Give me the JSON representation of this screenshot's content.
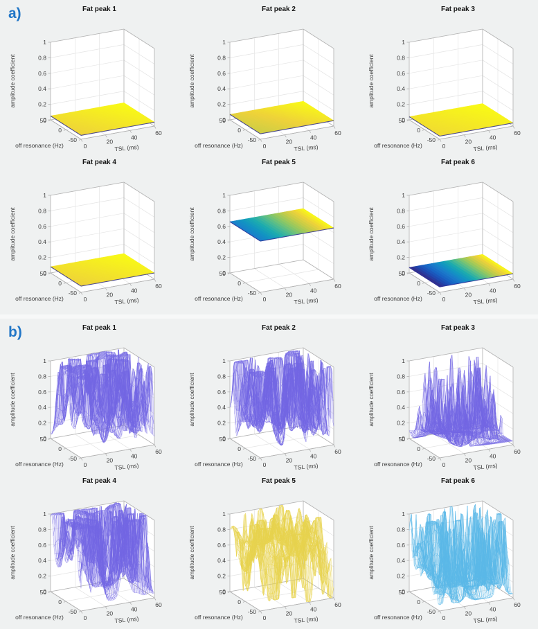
{
  "figure": {
    "background": "#eff1f1",
    "plot_background": "#ffffff",
    "panel_label_color": "#2176c7",
    "axis_line_color": "#b2b2b2",
    "grid_line_color": "#e4e4e4",
    "tick_text_color": "#3d3d3d"
  },
  "chart_data": {
    "type": "surface-grid",
    "description": "Two panels (a, b) each with six 3D surface plots of fat peak amplitude coefficients versus TSL and off resonance frequency",
    "axes": {
      "x": {
        "label": "TSL (ms)",
        "ticks": [
          0,
          20,
          40,
          60
        ],
        "range": [
          0,
          60
        ]
      },
      "y": {
        "label": "off resonance (Hz)",
        "ticks": [
          50,
          0,
          -50
        ],
        "range": [
          -50,
          50
        ]
      },
      "z": {
        "label": "amplitude coefficient",
        "ticks": [
          0,
          0.2,
          0.4,
          0.6,
          0.8,
          1
        ],
        "range": [
          0,
          1
        ]
      }
    },
    "panels": [
      {
        "id": "a",
        "label": "a)",
        "style": "smooth flat surfaces, parula colormap",
        "plots": [
          {
            "title": "Fat peak 1",
            "surface": "flat",
            "level": 0.05,
            "cmap_span": [
              0.9,
              1.0
            ],
            "cmap_dir": "diag"
          },
          {
            "title": "Fat peak 2",
            "surface": "flat",
            "level": 0.07,
            "cmap_span": [
              0.82,
              1.0
            ],
            "cmap_dir": "diag"
          },
          {
            "title": "Fat peak 3",
            "surface": "flat",
            "level": 0.04,
            "cmap_span": [
              0.92,
              1.0
            ],
            "cmap_dir": "diag"
          },
          {
            "title": "Fat peak 4",
            "surface": "flat",
            "level": 0.08,
            "cmap_span": [
              0.9,
              1.0
            ],
            "cmap_dir": "diag"
          },
          {
            "title": "Fat peak 5",
            "surface": "flat",
            "level": 0.66,
            "cmap_span": [
              0.3,
              1.0
            ],
            "cmap_dir": "x"
          },
          {
            "title": "Fat peak 6",
            "surface": "flat",
            "level": 0.07,
            "cmap_span": [
              0.0,
              1.0
            ],
            "cmap_dir": "x"
          }
        ]
      },
      {
        "id": "b",
        "label": "b)",
        "style": "noisy spiky mesh surfaces",
        "plots": [
          {
            "title": "Fat peak 1",
            "surface": "spiky",
            "color": "#7468e4",
            "fill_alpha": 0.13,
            "gen": {
              "seed": 7,
              "peaks": 170,
              "w_min": 0.55,
              "w_max": 1.9,
              "h_min": 0.3,
              "h_max": 1.2,
              "base": 0.05,
              "wave": 0.5,
              "wave_phase": 0.5,
              "bumps": [
                {
                  "x": 0.02,
                  "y": 0.1,
                  "h": 0.9,
                  "w": 0.1
                },
                {
                  "x": 0.04,
                  "y": 0.5,
                  "h": 0.45,
                  "w": 0.13
                }
              ]
            }
          },
          {
            "title": "Fat peak 2",
            "surface": "spiky",
            "color": "#7468e4",
            "fill_alpha": 0.13,
            "gen": {
              "seed": 19,
              "peaks": 150,
              "w_min": 0.55,
              "w_max": 1.9,
              "h_min": 0.3,
              "h_max": 1.15,
              "base": 0.05,
              "wave": 0.45,
              "wave_phase": 2.1,
              "bumps": [
                {
                  "x": 0.03,
                  "y": 0.22,
                  "h": 0.9,
                  "w": 0.12
                }
              ]
            }
          },
          {
            "title": "Fat peak 3",
            "surface": "spiky",
            "color": "#7468e4",
            "fill_alpha": 0.13,
            "gen": {
              "seed": 31,
              "peaks": 62,
              "w_min": 0.5,
              "w_max": 1.4,
              "h_min": 0.25,
              "h_max": 1.05,
              "base": 0.04,
              "wave": 0.2,
              "wave_phase": 1.2,
              "bumps": [
                {
                  "x": 0.05,
                  "y": 0.2,
                  "h": 0.4,
                  "w": 0.1
                }
              ]
            }
          },
          {
            "title": "Fat peak 4",
            "surface": "spiky",
            "color": "#7468e4",
            "fill_alpha": 0.13,
            "gen": {
              "seed": 43,
              "peaks": 145,
              "w_min": 0.55,
              "w_max": 2.0,
              "h_min": 0.3,
              "h_max": 1.2,
              "base": 0.06,
              "wave": 0.5,
              "wave_phase": 3.6,
              "bumps": [
                {
                  "x": 0.03,
                  "y": 0.3,
                  "h": 0.95,
                  "w": 0.13
                },
                {
                  "x": 0.1,
                  "y": 0.62,
                  "h": 0.5,
                  "w": 0.1
                }
              ]
            }
          },
          {
            "title": "Fat peak 5",
            "surface": "spiky",
            "color": "#e8d44e",
            "fill_alpha": 0.2,
            "gen": {
              "seed": 57,
              "peaks": 120,
              "w_min": 0.6,
              "w_max": 1.8,
              "h_min": 0.15,
              "h_max": 0.6,
              "base": 0.58,
              "wave": 0.32,
              "wave_phase": 1.0,
              "dip_frac": 0.45,
              "bumps": [
                {
                  "x": 0.04,
                  "y": 0.15,
                  "h": 0.35,
                  "w": 0.12
                },
                {
                  "x": 0.05,
                  "y": 0.62,
                  "h": -0.5,
                  "w": 0.1
                },
                {
                  "x": 0.02,
                  "y": 0.9,
                  "h": 0.3,
                  "w": 0.09
                }
              ]
            }
          },
          {
            "title": "Fat peak 6",
            "surface": "spiky",
            "color": "#5cb8e8",
            "fill_alpha": 0.16,
            "gen": {
              "seed": 68,
              "peaks": 88,
              "w_min": 0.5,
              "w_max": 1.6,
              "h_min": 0.25,
              "h_max": 1.1,
              "base": 0.05,
              "wave": 0.3,
              "wave_phase": 2.4,
              "bumps": [
                {
                  "x": 0.1,
                  "y": 0.45,
                  "h": 0.92,
                  "w": 0.09
                },
                {
                  "x": 0.05,
                  "y": 0.8,
                  "h": 0.6,
                  "w": 0.08
                }
              ]
            }
          }
        ]
      }
    ]
  }
}
